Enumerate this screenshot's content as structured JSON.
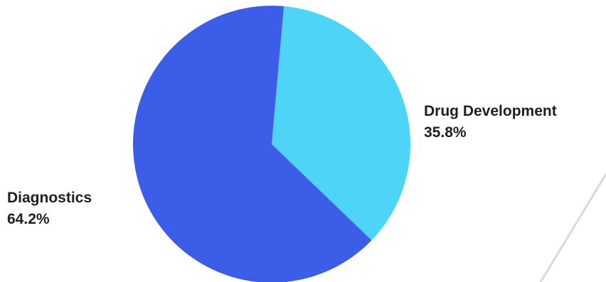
{
  "chart_data": {
    "type": "pie",
    "categories": [
      "Drug Development",
      "Diagnostics"
    ],
    "values": [
      35.8,
      64.2
    ],
    "value_labels": [
      "35.8%",
      "64.2%"
    ],
    "colors": [
      "#4dd4f7",
      "#3b5de7"
    ],
    "start": "top, clockwise",
    "legend": "none (direct labels)"
  },
  "labels": {
    "drug": {
      "name": "Drug Development",
      "pct": "35.8%"
    },
    "diagnostics": {
      "name": "Diagnostics",
      "pct": "64.2%"
    }
  }
}
